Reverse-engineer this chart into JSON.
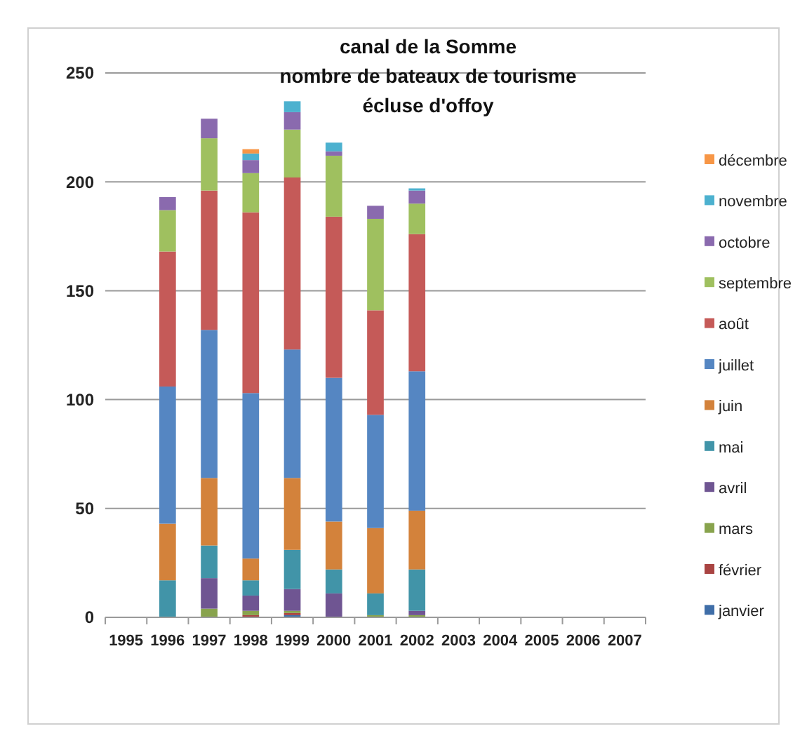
{
  "chart_data": {
    "type": "bar",
    "stacked": true,
    "title": "canal de la Somme\nnombre de bateaux de tourisme\nécluse d'offoy",
    "categories": [
      "1995",
      "1996",
      "1997",
      "1998",
      "1999",
      "2000",
      "2001",
      "2002",
      "2003",
      "2004",
      "2005",
      "2006",
      "2007"
    ],
    "ylim": [
      0,
      250
    ],
    "yticks": [
      0,
      50,
      100,
      150,
      200,
      250
    ],
    "grid": "y",
    "legend": "right",
    "series": [
      {
        "name": "janvier",
        "color": "#3f6ea8",
        "values": [
          null,
          0,
          0,
          0,
          1,
          0,
          0,
          0,
          null,
          null,
          null,
          null,
          null
        ]
      },
      {
        "name": "février",
        "color": "#a94442",
        "values": [
          null,
          0,
          0,
          1,
          1,
          0,
          0,
          0,
          null,
          null,
          null,
          null,
          null
        ]
      },
      {
        "name": "mars",
        "color": "#88a34d",
        "values": [
          null,
          0,
          4,
          2,
          1,
          0,
          1,
          1,
          null,
          null,
          null,
          null,
          null
        ]
      },
      {
        "name": "avril",
        "color": "#6f5592",
        "values": [
          null,
          0,
          14,
          7,
          10,
          11,
          0,
          2,
          null,
          null,
          null,
          null,
          null
        ]
      },
      {
        "name": "mai",
        "color": "#4194a8",
        "values": [
          null,
          17,
          15,
          7,
          18,
          11,
          10,
          19,
          null,
          null,
          null,
          null,
          null
        ]
      },
      {
        "name": "juin",
        "color": "#d3823b",
        "values": [
          null,
          26,
          31,
          10,
          33,
          22,
          30,
          27,
          null,
          null,
          null,
          null,
          null
        ]
      },
      {
        "name": "juillet",
        "color": "#5586c2",
        "values": [
          null,
          63,
          68,
          76,
          59,
          66,
          52,
          64,
          null,
          null,
          null,
          null,
          null
        ]
      },
      {
        "name": "août",
        "color": "#c55a58",
        "values": [
          null,
          62,
          64,
          83,
          79,
          74,
          48,
          63,
          null,
          null,
          null,
          null,
          null
        ]
      },
      {
        "name": "septembre",
        "color": "#9fc05f",
        "values": [
          null,
          19,
          24,
          18,
          22,
          28,
          42,
          14,
          null,
          null,
          null,
          null,
          null
        ]
      },
      {
        "name": "octobre",
        "color": "#8a6aae",
        "values": [
          null,
          6,
          9,
          6,
          8,
          2,
          6,
          6,
          null,
          null,
          null,
          null,
          null
        ]
      },
      {
        "name": "novembre",
        "color": "#4cb1cf",
        "values": [
          null,
          0,
          0,
          3,
          5,
          4,
          0,
          1,
          null,
          null,
          null,
          null,
          null
        ]
      },
      {
        "name": "décembre",
        "color": "#f79646",
        "values": [
          null,
          0,
          0,
          2,
          0,
          0,
          0,
          0,
          null,
          null,
          null,
          null,
          null
        ]
      }
    ]
  }
}
